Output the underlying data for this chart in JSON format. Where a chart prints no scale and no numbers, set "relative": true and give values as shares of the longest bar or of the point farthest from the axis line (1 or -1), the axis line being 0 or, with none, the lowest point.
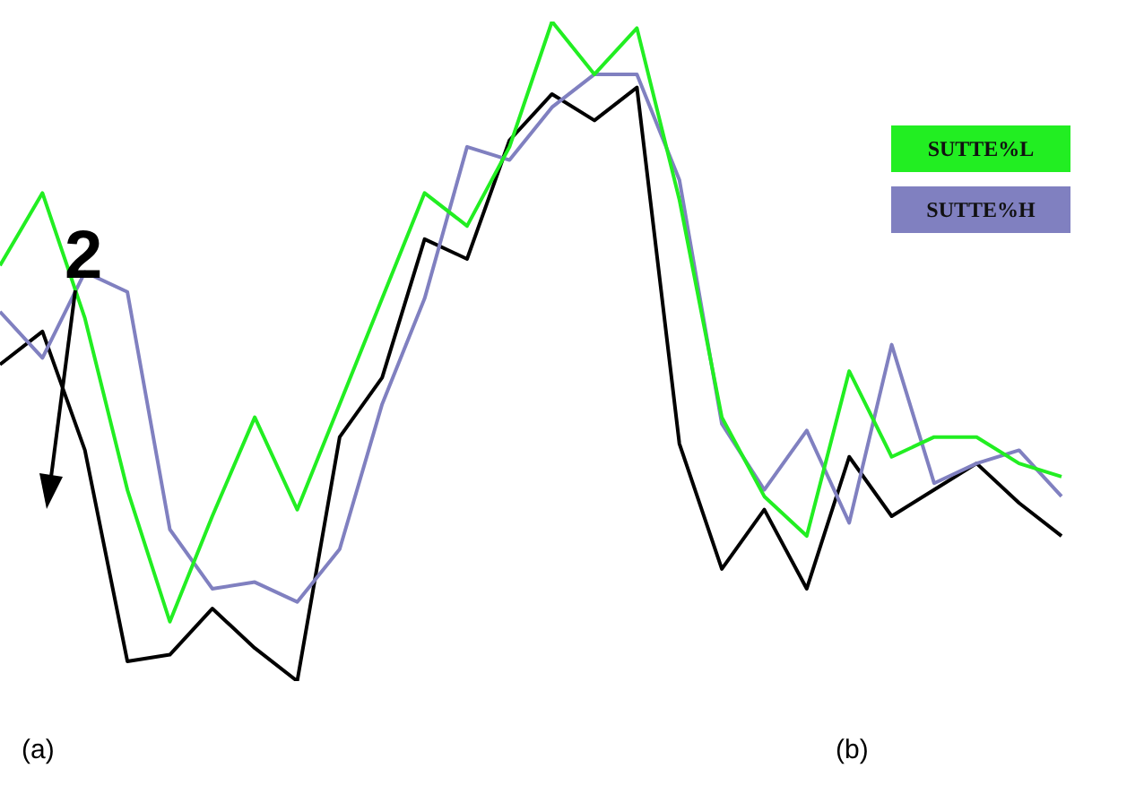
{
  "chart_data": {
    "type": "line",
    "relative": true,
    "categories": [
      null,
      null,
      null,
      null,
      null,
      null,
      null,
      null,
      null,
      null,
      null,
      null,
      null,
      null,
      null,
      null,
      null,
      null,
      null,
      null,
      null,
      null,
      null,
      null,
      null,
      null
    ],
    "series": [
      {
        "name": "SUTTE%L",
        "color": "#22ee22",
        "values": [
          0.63,
          0.74,
          0.55,
          0.29,
          0.09,
          0.25,
          0.4,
          0.26,
          0.42,
          0.58,
          0.74,
          0.69,
          0.81,
          1.0,
          0.92,
          0.99,
          0.73,
          0.4,
          0.28,
          0.22,
          0.47,
          0.34,
          0.37,
          0.37,
          0.33,
          0.31
        ]
      },
      {
        "name": "SUTTE%H",
        "color": "#8080c0",
        "values": [
          0.56,
          0.49,
          0.62,
          0.59,
          0.23,
          0.14,
          0.15,
          0.12,
          0.2,
          0.42,
          0.58,
          0.81,
          0.79,
          0.87,
          0.92,
          0.92,
          0.76,
          0.39,
          0.29,
          0.38,
          0.24,
          0.51,
          0.3,
          0.33,
          0.35,
          0.28
        ]
      },
      {
        "color": "#000000",
        "values": [
          0.48,
          0.53,
          0.35,
          0.03,
          0.04,
          0.11,
          0.05,
          0,
          0.37,
          0.46,
          0.67,
          0.64,
          0.82,
          0.89,
          0.85,
          0.9,
          0.36,
          0.17,
          0.26,
          0.14,
          0.34,
          0.25,
          0.29,
          0.33,
          0.27,
          0.22
        ]
      }
    ],
    "legend": "right",
    "marker": "none",
    "line_style": "solid",
    "grid": false,
    "annotations": [
      "2",
      "(a)",
      "(b)"
    ]
  }
}
